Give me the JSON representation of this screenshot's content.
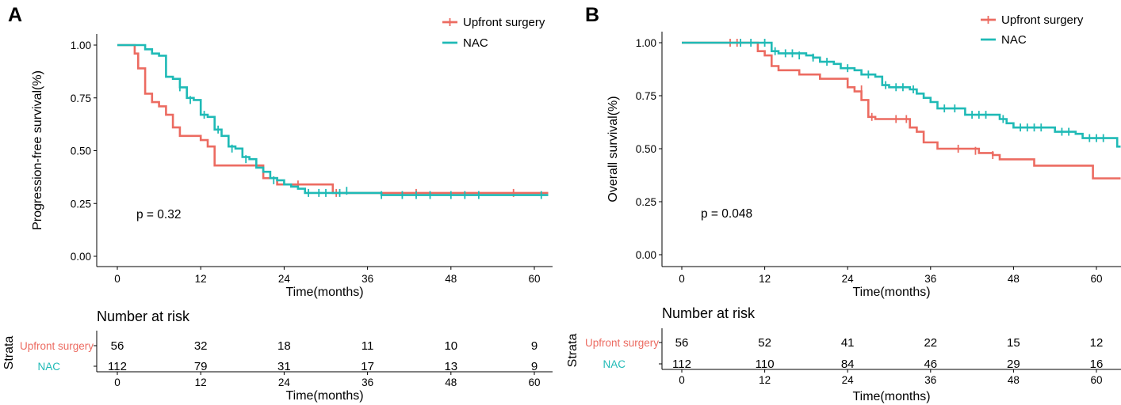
{
  "colors": {
    "upfront": "#ec6b61",
    "nac": "#1fbab6",
    "axis": "#000000"
  },
  "chart_data": [
    {
      "panel": "A",
      "type": "line",
      "subtype": "kaplan-meier",
      "xlabel": "Time(months)",
      "ylabel": "Progression-free survival(%)",
      "xlim": [
        -2,
        62
      ],
      "ylim": [
        0,
        1
      ],
      "xticks": [
        "0",
        "12",
        "24",
        "36",
        "48",
        "60"
      ],
      "yticks": [
        "0.00",
        "0.25",
        "0.50",
        "0.75",
        "1.00"
      ],
      "legend": {
        "position": "top-right",
        "entries": [
          "Upfront surgery",
          "NAC"
        ]
      },
      "annotation": "p = 0.32",
      "series": [
        {
          "name": "Upfront surgery",
          "color_key": "upfront",
          "steps": [
            [
              0,
              1
            ],
            [
              2,
              1
            ],
            [
              2.5,
              0.96
            ],
            [
              3,
              0.89
            ],
            [
              4,
              0.77
            ],
            [
              5,
              0.73
            ],
            [
              6,
              0.71
            ],
            [
              7,
              0.67
            ],
            [
              8,
              0.61
            ],
            [
              9,
              0.57
            ],
            [
              11,
              0.57
            ],
            [
              12,
              0.55
            ],
            [
              13,
              0.52
            ],
            [
              14,
              0.43
            ],
            [
              20,
              0.43
            ],
            [
              21,
              0.37
            ],
            [
              22,
              0.37
            ],
            [
              23,
              0.34
            ],
            [
              31,
              0.34
            ],
            [
              31,
              0.3
            ],
            [
              62,
              0.3
            ]
          ],
          "censors": [
            [
              26,
              0.34
            ],
            [
              31.5,
              0.3
            ],
            [
              43,
              0.3
            ],
            [
              57,
              0.3
            ]
          ]
        },
        {
          "name": "NAC",
          "color_key": "nac",
          "steps": [
            [
              0,
              1
            ],
            [
              3,
              1
            ],
            [
              4,
              0.98
            ],
            [
              5,
              0.96
            ],
            [
              6,
              0.95
            ],
            [
              7,
              0.85
            ],
            [
              8,
              0.84
            ],
            [
              9,
              0.8
            ],
            [
              10,
              0.75
            ],
            [
              11,
              0.74
            ],
            [
              12,
              0.67
            ],
            [
              13,
              0.66
            ],
            [
              14,
              0.6
            ],
            [
              15,
              0.57
            ],
            [
              16,
              0.52
            ],
            [
              17,
              0.51
            ],
            [
              18,
              0.47
            ],
            [
              19,
              0.46
            ],
            [
              20,
              0.42
            ],
            [
              21,
              0.4
            ],
            [
              22,
              0.37
            ],
            [
              23,
              0.36
            ],
            [
              24,
              0.34
            ],
            [
              25,
              0.33
            ],
            [
              26,
              0.32
            ],
            [
              27,
              0.3
            ],
            [
              30,
              0.3
            ],
            [
              31,
              0.3
            ],
            [
              38,
              0.29
            ],
            [
              62,
              0.29
            ]
          ],
          "censors": [
            [
              9,
              0.8
            ],
            [
              10.5,
              0.74
            ],
            [
              12.5,
              0.67
            ],
            [
              14.5,
              0.6
            ],
            [
              16.5,
              0.51
            ],
            [
              18.5,
              0.46
            ],
            [
              22.5,
              0.36
            ],
            [
              27.5,
              0.3
            ],
            [
              29,
              0.3
            ],
            [
              30,
              0.3
            ],
            [
              32,
              0.3
            ],
            [
              33,
              0.31
            ],
            [
              38,
              0.29
            ],
            [
              41,
              0.29
            ],
            [
              43,
              0.29
            ],
            [
              45,
              0.29
            ],
            [
              48,
              0.29
            ],
            [
              50,
              0.29
            ],
            [
              52,
              0.29
            ],
            [
              61,
              0.29
            ]
          ]
        }
      ],
      "risk_table": {
        "title": "Number at risk",
        "strata_label": "Strata",
        "xlabel": "Time(months)",
        "times": [
          "0",
          "12",
          "24",
          "36",
          "48",
          "60"
        ],
        "rows": [
          {
            "label": "Upfront surgery",
            "color_key": "upfront",
            "values": [
              "56",
              "32",
              "18",
              "11",
              "10",
              "9"
            ]
          },
          {
            "label": "NAC",
            "color_key": "nac",
            "values": [
              "112",
              "79",
              "31",
              "17",
              "13",
              "9"
            ]
          }
        ]
      }
    },
    {
      "panel": "B",
      "type": "line",
      "subtype": "kaplan-meier",
      "xlabel": "Time(months)",
      "ylabel": "Overall survival(%)",
      "xlim": [
        -2,
        63.5
      ],
      "ylim": [
        0,
        1
      ],
      "xticks": [
        "0",
        "12",
        "24",
        "36",
        "48",
        "60"
      ],
      "yticks": [
        "0.00",
        "0.25",
        "0.50",
        "0.75",
        "1.00"
      ],
      "legend": {
        "position": "top-right",
        "entries": [
          "Upfront surgery",
          "NAC"
        ]
      },
      "annotation": "p = 0.048",
      "series": [
        {
          "name": "Upfront surgery",
          "color_key": "upfront",
          "steps": [
            [
              0,
              1
            ],
            [
              10,
              1
            ],
            [
              11,
              0.96
            ],
            [
              12,
              0.94
            ],
            [
              13,
              0.89
            ],
            [
              14,
              0.87
            ],
            [
              16,
              0.87
            ],
            [
              17,
              0.85
            ],
            [
              19,
              0.85
            ],
            [
              20,
              0.83
            ],
            [
              23,
              0.83
            ],
            [
              24,
              0.79
            ],
            [
              25,
              0.77
            ],
            [
              26,
              0.73
            ],
            [
              27,
              0.65
            ],
            [
              28,
              0.64
            ],
            [
              32,
              0.64
            ],
            [
              33,
              0.6
            ],
            [
              34,
              0.58
            ],
            [
              35,
              0.53
            ],
            [
              37,
              0.5
            ],
            [
              42,
              0.5
            ],
            [
              43,
              0.48
            ],
            [
              45,
              0.47
            ],
            [
              46,
              0.45
            ],
            [
              50,
              0.45
            ],
            [
              51,
              0.42
            ],
            [
              59,
              0.42
            ],
            [
              59.5,
              0.36
            ],
            [
              63.5,
              0.36
            ]
          ],
          "censors": [
            [
              7,
              1
            ],
            [
              8,
              1
            ],
            [
              26,
              0.78
            ],
            [
              27.5,
              0.65
            ],
            [
              31,
              0.64
            ],
            [
              32.5,
              0.64
            ],
            [
              40,
              0.5
            ],
            [
              42.5,
              0.49
            ],
            [
              45,
              0.47
            ]
          ]
        },
        {
          "name": "NAC",
          "color_key": "nac",
          "steps": [
            [
              0,
              1
            ],
            [
              12,
              1
            ],
            [
              13,
              0.96
            ],
            [
              14,
              0.95
            ],
            [
              18,
              0.94
            ],
            [
              19,
              0.93
            ],
            [
              20,
              0.91
            ],
            [
              22,
              0.9
            ],
            [
              23,
              0.88
            ],
            [
              25,
              0.87
            ],
            [
              26,
              0.85
            ],
            [
              28,
              0.84
            ],
            [
              29,
              0.8
            ],
            [
              30,
              0.79
            ],
            [
              33,
              0.78
            ],
            [
              34,
              0.76
            ],
            [
              35,
              0.74
            ],
            [
              36,
              0.72
            ],
            [
              37,
              0.69
            ],
            [
              40,
              0.69
            ],
            [
              41,
              0.66
            ],
            [
              45,
              0.66
            ],
            [
              46,
              0.64
            ],
            [
              47,
              0.62
            ],
            [
              48,
              0.6
            ],
            [
              53,
              0.6
            ],
            [
              54,
              0.58
            ],
            [
              57,
              0.57
            ],
            [
              58,
              0.55
            ],
            [
              63,
              0.55
            ],
            [
              63,
              0.51
            ],
            [
              63.5,
              0.51
            ]
          ],
          "censors": [
            [
              8.5,
              1
            ],
            [
              10,
              1
            ],
            [
              12,
              1
            ],
            [
              13.5,
              0.96
            ],
            [
              15,
              0.95
            ],
            [
              16,
              0.95
            ],
            [
              17,
              0.94
            ],
            [
              19,
              0.93
            ],
            [
              21,
              0.91
            ],
            [
              24,
              0.88
            ],
            [
              27,
              0.85
            ],
            [
              29.5,
              0.8
            ],
            [
              31,
              0.79
            ],
            [
              32,
              0.79
            ],
            [
              33.5,
              0.78
            ],
            [
              38,
              0.69
            ],
            [
              39.5,
              0.69
            ],
            [
              42,
              0.66
            ],
            [
              43,
              0.66
            ],
            [
              44,
              0.66
            ],
            [
              46.5,
              0.64
            ],
            [
              49,
              0.6
            ],
            [
              50,
              0.6
            ],
            [
              51,
              0.6
            ],
            [
              52,
              0.6
            ],
            [
              55,
              0.58
            ],
            [
              56,
              0.58
            ],
            [
              59,
              0.55
            ],
            [
              60,
              0.55
            ],
            [
              61,
              0.55
            ]
          ]
        }
      ],
      "risk_table": {
        "title": "Number at risk",
        "strata_label": "Strata",
        "xlabel": "Time(months)",
        "times": [
          "0",
          "12",
          "24",
          "36",
          "48",
          "60"
        ],
        "rows": [
          {
            "label": "Upfront surgery",
            "color_key": "upfront",
            "values": [
              "56",
              "52",
              "41",
              "22",
              "15",
              "12"
            ]
          },
          {
            "label": "NAC",
            "color_key": "nac",
            "values": [
              "112",
              "110",
              "84",
              "46",
              "29",
              "16"
            ]
          }
        ]
      }
    }
  ]
}
